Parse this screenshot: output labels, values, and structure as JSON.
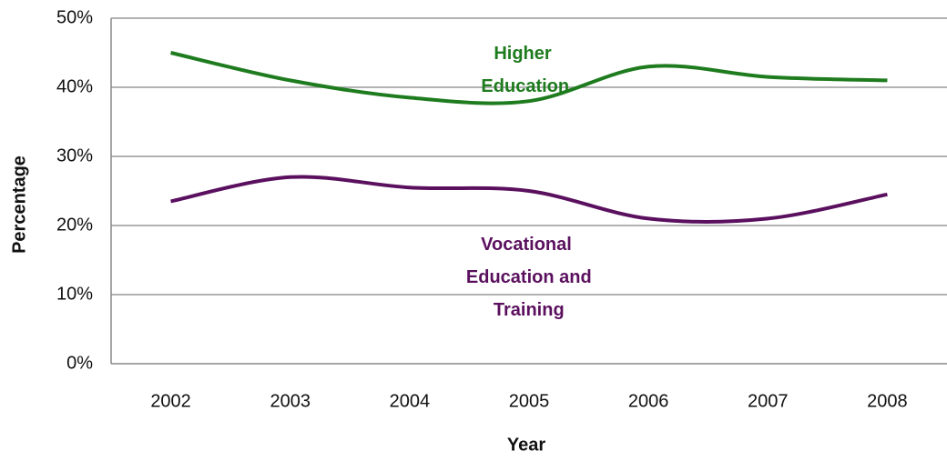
{
  "chart_data": {
    "type": "line",
    "x_label": "Year",
    "y_label": "Percentage",
    "categories": [
      "2002",
      "2003",
      "2004",
      "2005",
      "2006",
      "2007",
      "2008"
    ],
    "series": [
      {
        "name": "Higher Education",
        "color": "#1e7b1e",
        "values": [
          45,
          41,
          38.5,
          38,
          43,
          41.5,
          41
        ]
      },
      {
        "name": "Vocational Education and Training",
        "color": "#5a105e",
        "values": [
          23.5,
          27,
          25.5,
          25,
          21,
          21,
          24.5
        ]
      }
    ],
    "ylim": [
      0,
      50
    ],
    "yticks": [
      {
        "value": 0,
        "label": "0%"
      },
      {
        "value": 10,
        "label": "10%"
      },
      {
        "value": 20,
        "label": "20%"
      },
      {
        "value": 30,
        "label": "30%"
      },
      {
        "value": 40,
        "label": "40%"
      },
      {
        "value": 50,
        "label": "50%"
      }
    ],
    "grid": true
  }
}
